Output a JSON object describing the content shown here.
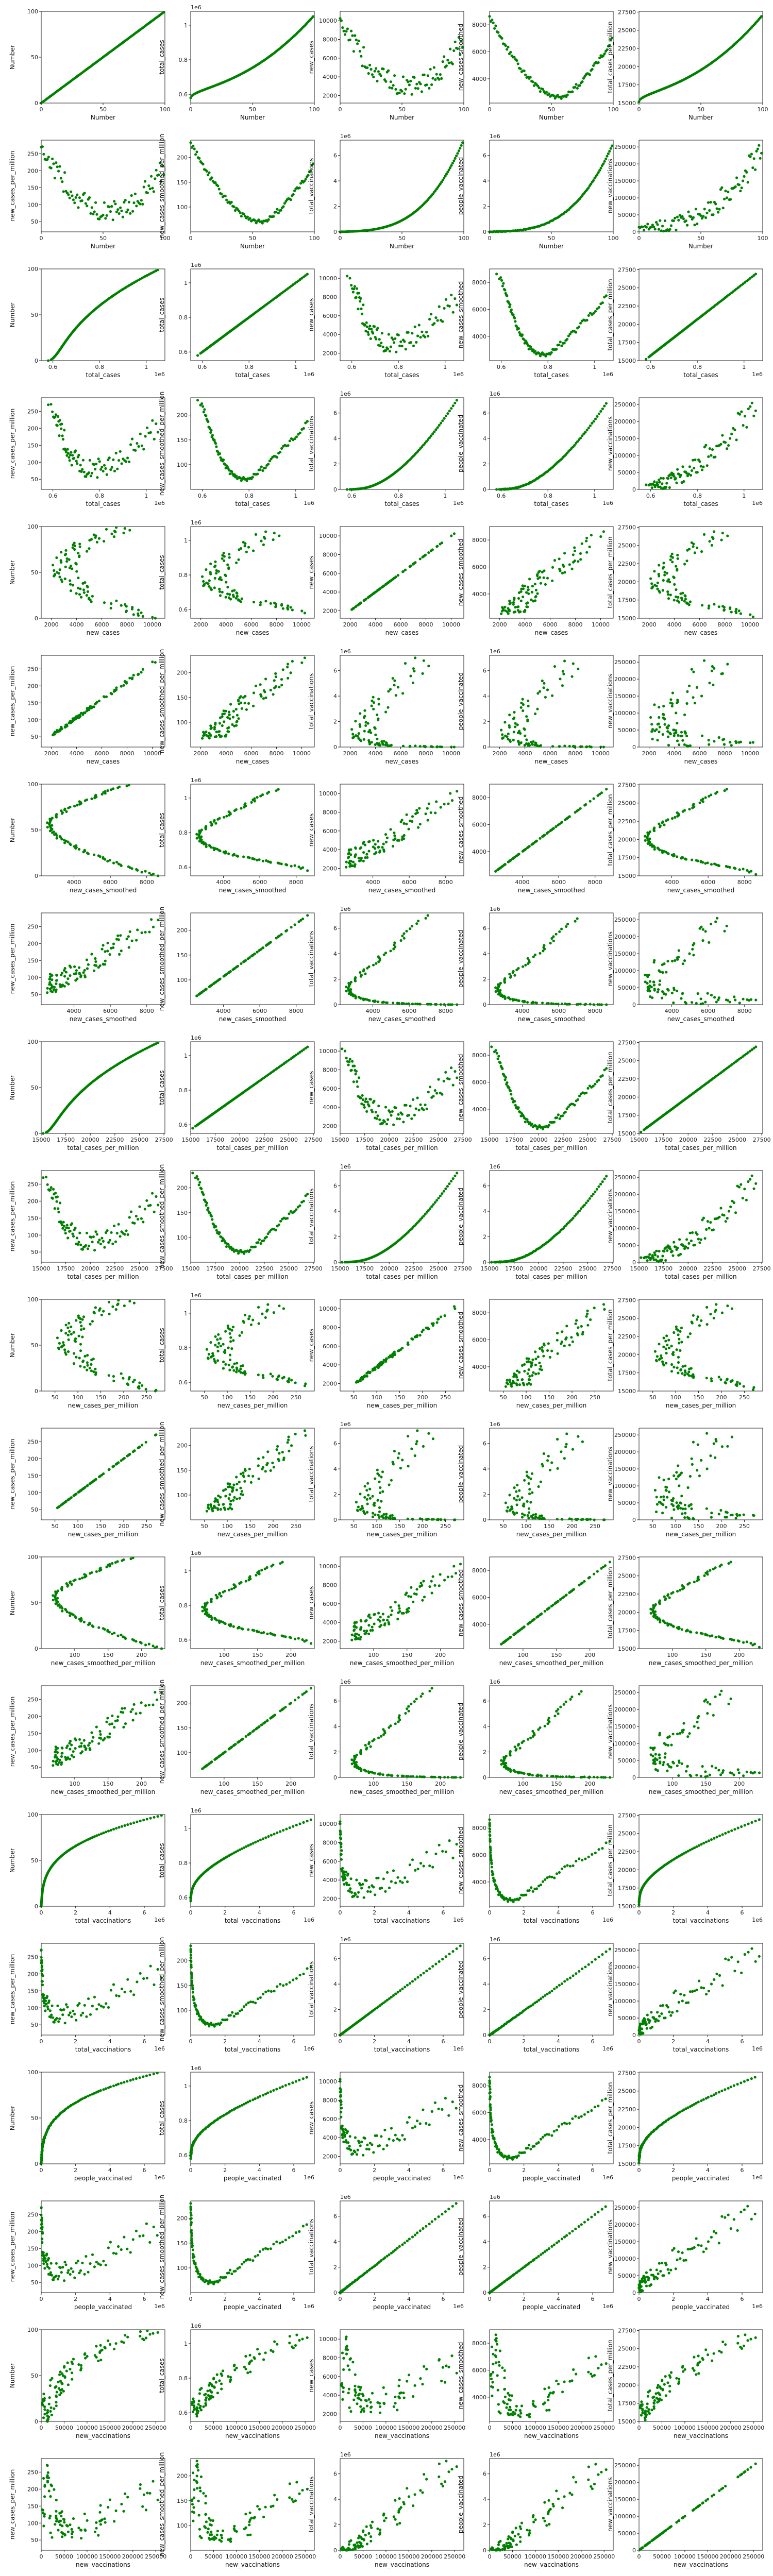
{
  "figure": {
    "type": "scatter-matrix",
    "marker_color": "#008000",
    "rows": 20,
    "cols": 5
  },
  "variables": [
    {
      "name": "Number",
      "range": [
        0,
        100
      ],
      "ticks": [
        0,
        50,
        100
      ],
      "scale": 1,
      "exp": ""
    },
    {
      "name": "total_cases",
      "range": [
        0.55,
        1.08
      ],
      "ticks": [
        0.6,
        0.8,
        1.0
      ],
      "scale": 1000000,
      "exp": "1e6"
    },
    {
      "name": "new_cases",
      "range": [
        1200,
        11000
      ],
      "ticks": [
        2000,
        4000,
        6000,
        8000,
        10000
      ],
      "scale": 1,
      "exp": ""
    },
    {
      "name": "new_cases_smoothed",
      "range": [
        2200,
        9000
      ],
      "ticks": [
        4000,
        6000,
        8000
      ],
      "scale": 1,
      "exp": ""
    },
    {
      "name": "total_cases_per_million",
      "range": [
        15000,
        27600
      ],
      "ticks": [
        15000,
        17500,
        20000,
        22500,
        25000,
        27500
      ],
      "scale": 1,
      "exp": ""
    },
    {
      "name": "new_cases_per_million",
      "range": [
        20,
        290
      ],
      "ticks": [
        50,
        100,
        150,
        200,
        250
      ],
      "scale": 1,
      "exp": ""
    },
    {
      "name": "new_cases_smoothed_per_million",
      "range": [
        50,
        235
      ],
      "ticks": [
        100,
        150,
        200
      ],
      "scale": 1,
      "exp": ""
    },
    {
      "name": "total_vaccinations",
      "range": [
        0,
        7.2
      ],
      "ticks": [
        0,
        2,
        4,
        6
      ],
      "scale": 1000000,
      "exp": "1e6"
    },
    {
      "name": "people_vaccinated",
      "range": [
        0,
        7.2
      ],
      "ticks": [
        0,
        2,
        4,
        6
      ],
      "scale": 1000000,
      "exp": "1e6"
    },
    {
      "name": "new_vaccinations",
      "range": [
        0,
        270000
      ],
      "ticks": [
        0,
        50000,
        100000,
        150000,
        200000,
        250000
      ],
      "scale": 1,
      "exp": ""
    }
  ],
  "chart_data": [
    {
      "type": "scatter",
      "source": "matrix",
      "x_variables": [
        "Number",
        "total_cases",
        "new_cases",
        "new_cases_smoothed",
        "total_cases_per_million",
        "new_cases_per_million",
        "new_cases_smoothed_per_million",
        "total_vaccinations",
        "people_vaccinated",
        "new_vaccinations"
      ],
      "y_variables": [
        "Number",
        "total_cases",
        "new_cases",
        "new_cases_smoothed",
        "total_cases_per_million",
        "new_cases_per_million",
        "new_cases_smoothed_per_million",
        "total_vaccinations",
        "people_vaccinated",
        "new_vaccinations"
      ],
      "n_points": 100,
      "note": "Each x variable is plotted against every y variable in a 20x5 grid of panels."
    }
  ]
}
